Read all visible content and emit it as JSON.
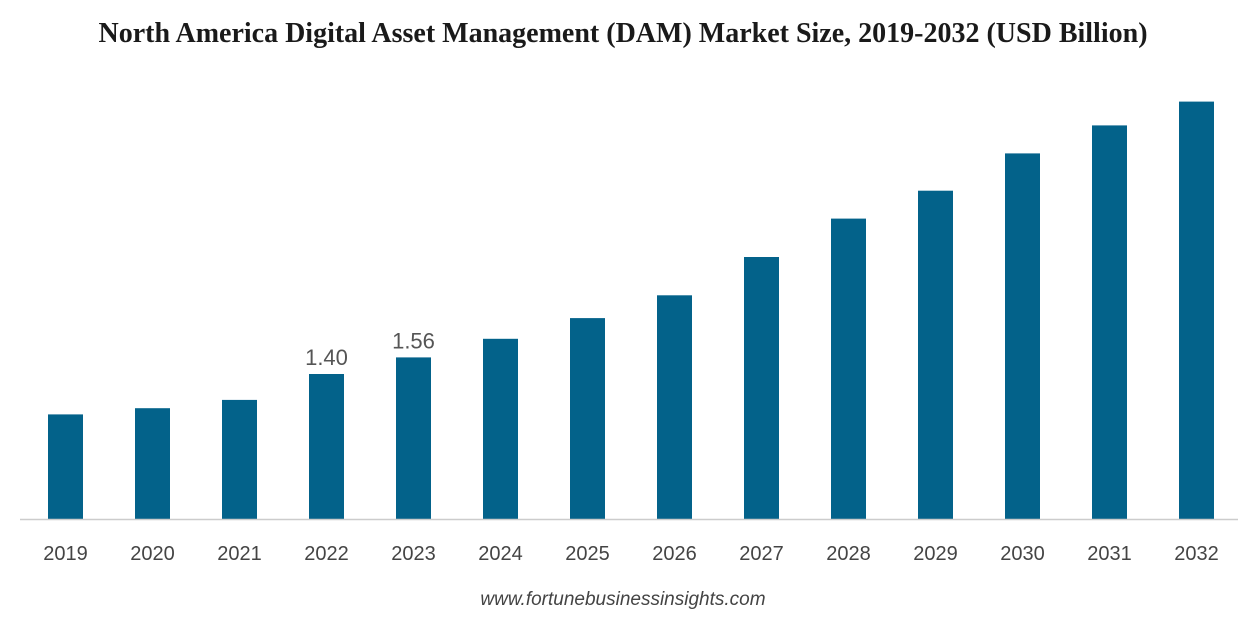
{
  "chart_data": {
    "type": "bar",
    "title": "North America Digital Asset Management (DAM) Market Size, 2019-2032 (USD Billion)",
    "categories": [
      "2019",
      "2020",
      "2021",
      "2022",
      "2023",
      "2024",
      "2025",
      "2026",
      "2027",
      "2028",
      "2029",
      "2030",
      "2031",
      "2032"
    ],
    "values": [
      1.01,
      1.07,
      1.15,
      1.4,
      1.56,
      1.74,
      1.94,
      2.16,
      2.53,
      2.9,
      3.17,
      3.53,
      3.8,
      4.03
    ],
    "data_labels": {
      "3": "1.40",
      "4": "1.56"
    },
    "ylim": [
      0,
      4.2
    ],
    "xlabel": "",
    "ylabel": "",
    "grid": false,
    "legend": "none",
    "bar_color": "#03628a",
    "axis_color": "#cccccc"
  },
  "source": "www.fortunebusinessinsights.com"
}
